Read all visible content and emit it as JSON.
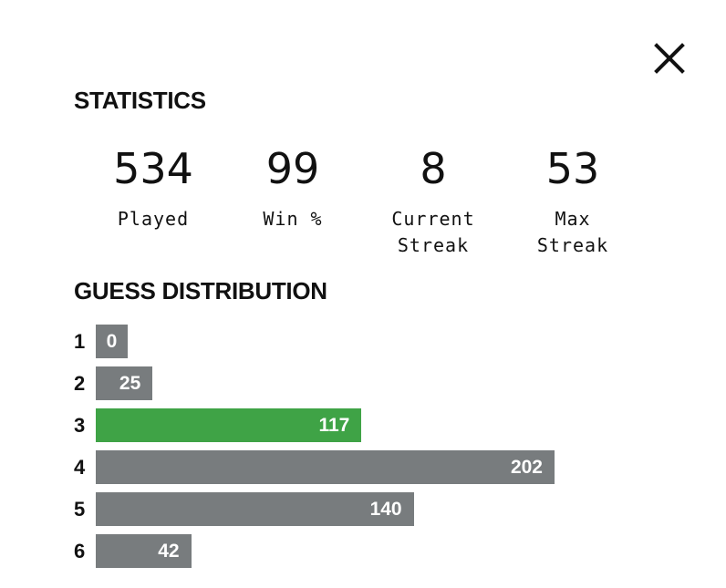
{
  "modal": {
    "statistics_title": "STATISTICS",
    "distribution_title": "GUESS DISTRIBUTION",
    "close_icon": "close-x-icon"
  },
  "stats": [
    {
      "value": "534",
      "label_line1": "Played",
      "label_line2": ""
    },
    {
      "value": "99",
      "label_line1": "Win %",
      "label_line2": ""
    },
    {
      "value": "8",
      "label_line1": "Current",
      "label_line2": "Streak"
    },
    {
      "value": "53",
      "label_line1": "Max",
      "label_line2": "Streak"
    }
  ],
  "distribution": [
    {
      "guess": "1",
      "count": 0
    },
    {
      "guess": "2",
      "count": 25
    },
    {
      "guess": "3",
      "count": 117
    },
    {
      "guess": "4",
      "count": 202
    },
    {
      "guess": "5",
      "count": 140
    },
    {
      "guess": "6",
      "count": 42
    }
  ],
  "highlight_guess": "3",
  "colors": {
    "bar_default": "#787c7e",
    "bar_highlight": "#3fa346",
    "text": "#111111"
  }
}
